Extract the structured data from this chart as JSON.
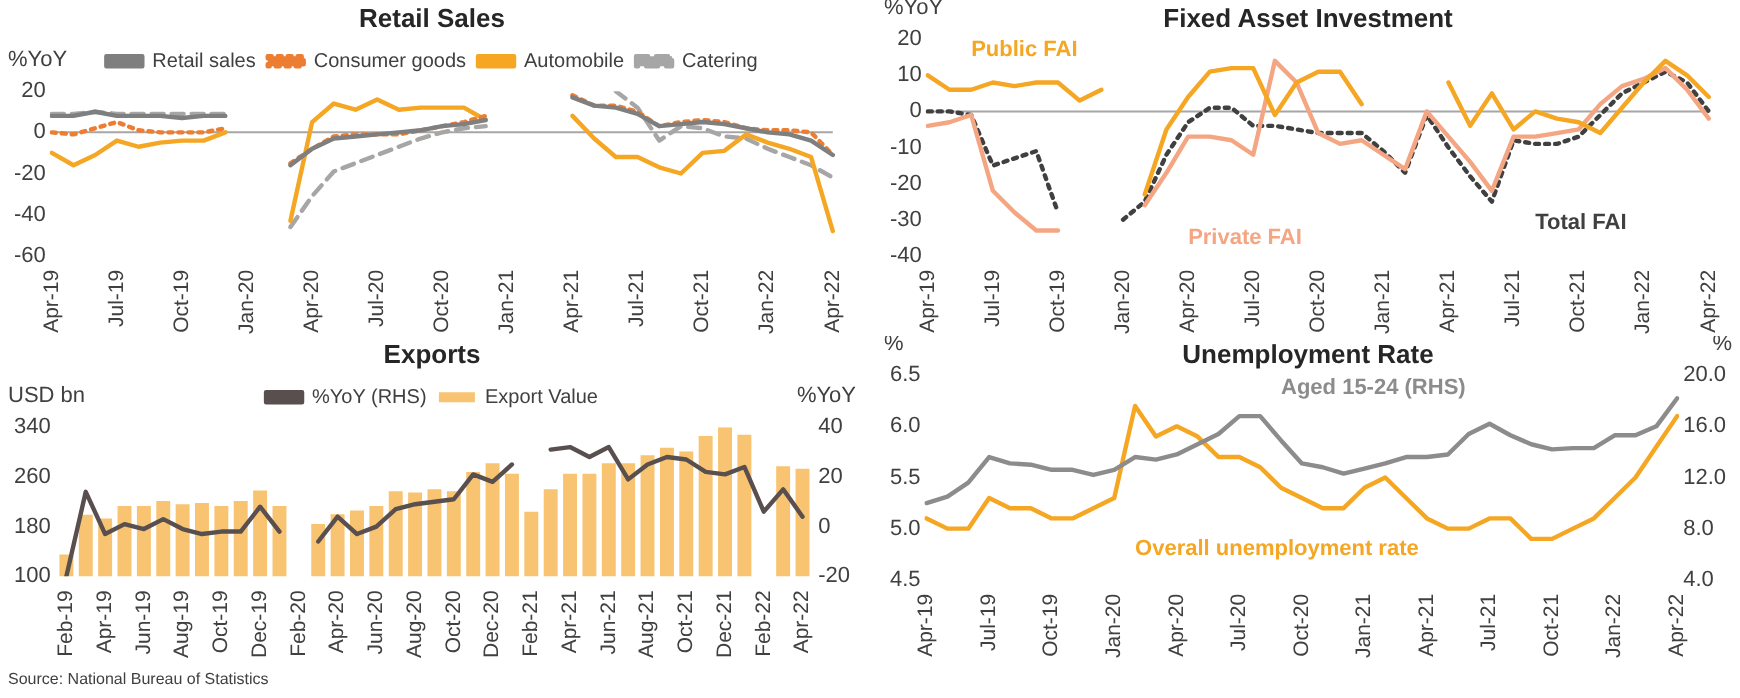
{
  "chart_data": [
    {
      "type": "line",
      "title": "Retail Sales",
      "ylabel": "%YoY",
      "categories": [
        "Apr-19",
        null,
        null,
        "Jul-19",
        null,
        null,
        "Oct-19",
        null,
        null,
        "Jan-20",
        null,
        null,
        "Apr-20",
        null,
        null,
        "Jul-20",
        null,
        null,
        "Oct-20",
        null,
        null,
        "Jan-21",
        null,
        null,
        "Apr-21",
        null,
        null,
        "Jul-21",
        null,
        null,
        "Oct-21",
        null,
        null,
        "Jan-22",
        null,
        null,
        "Apr-22"
      ],
      "series": [
        {
          "name": "Retail sales",
          "color": "#7f7f7f",
          "values": [
            8,
            8,
            10,
            8,
            8,
            8,
            7,
            8,
            8,
            null,
            null,
            -16,
            -8,
            -3,
            -2,
            -1,
            0,
            1,
            3,
            4,
            6,
            null,
            null,
            null,
            17,
            13,
            12,
            9,
            3,
            4,
            5,
            4,
            2,
            0,
            -1,
            -4,
            -11
          ]
        },
        {
          "name": "Consumer goods",
          "color": "#ed7d31",
          "line_style": "dotted",
          "values": [
            0,
            -1,
            2,
            5,
            1,
            0,
            0,
            0,
            2,
            null,
            null,
            -15,
            -8,
            -2,
            -1,
            -1,
            -1,
            1,
            3,
            5,
            8,
            null,
            null,
            null,
            18,
            13,
            13,
            10,
            3,
            5,
            6,
            5,
            2,
            1,
            1,
            0,
            -11
          ]
        },
        {
          "name": "Automobile",
          "color": "#f5a623",
          "values": [
            -10,
            -16,
            -11,
            -4,
            -7,
            -5,
            -4,
            -4,
            0,
            null,
            null,
            -43,
            5,
            14,
            11,
            16,
            11,
            12,
            12,
            12,
            6,
            null,
            null,
            null,
            8,
            -3,
            -12,
            -12,
            -17,
            -20,
            -10,
            -9,
            -1,
            -5,
            -8,
            -12,
            -48
          ]
        },
        {
          "name": "Catering",
          "color": "#a6a6a6",
          "line_style": "dashed",
          "values": [
            9,
            9,
            10,
            9,
            9,
            9,
            9,
            9,
            9,
            null,
            null,
            -46,
            -31,
            -19,
            -15,
            -11,
            -7,
            -3,
            0,
            2,
            3,
            null,
            null,
            null,
            null,
            null,
            20,
            12,
            -4,
            3,
            2,
            -2,
            -3,
            -8,
            -12,
            -16,
            -22
          ]
        }
      ],
      "ylim": [
        -60,
        20
      ],
      "yticks": [
        -60,
        -40,
        -20,
        0,
        20
      ],
      "legend": "top",
      "marker": "none",
      "ref_lines": [
        {
          "axis": "y",
          "value": 0,
          "color": "#a6a6a6"
        }
      ]
    },
    {
      "type": "line",
      "title": "Fixed Asset Investment",
      "ylabel": "%YoY",
      "categories": [
        "Apr-19",
        null,
        null,
        "Jul-19",
        null,
        null,
        "Oct-19",
        null,
        null,
        "Jan-20",
        null,
        null,
        "Apr-20",
        null,
        null,
        "Jul-20",
        null,
        null,
        "Oct-20",
        null,
        null,
        "Jan-21",
        null,
        null,
        "Apr-21",
        null,
        null,
        "Jul-21",
        null,
        null,
        "Oct-21",
        null,
        null,
        "Jan-22",
        null,
        null,
        "Apr-22"
      ],
      "series": [
        {
          "name": "Public FAI",
          "color": "#f5a623",
          "values": [
            10,
            6,
            6,
            8,
            7,
            8,
            8,
            3,
            6,
            null,
            -23,
            -5,
            4,
            11,
            12,
            12,
            -1,
            8,
            11,
            11,
            2,
            null,
            null,
            null,
            8,
            -4,
            5,
            -5,
            0,
            -2,
            -3,
            -6,
            1,
            8,
            14,
            10,
            4
          ]
        },
        {
          "name": "Private FAI",
          "color": "#f4a582",
          "values": [
            -4,
            -3,
            -1,
            -22,
            -28,
            -33,
            -33,
            null,
            null,
            null,
            -26,
            -17,
            -7,
            -7,
            -8,
            -12,
            14,
            8,
            -6,
            -9,
            -8,
            -12,
            -16,
            0,
            -7,
            -14,
            -22,
            -7,
            -7,
            -6,
            -5,
            2,
            7,
            9,
            12,
            6,
            -2
          ]
        },
        {
          "name": "Total FAI",
          "color": "#404040",
          "line_style": "dotted",
          "values": [
            0,
            0,
            -1,
            -15,
            -13,
            -11,
            -28,
            null,
            null,
            -30,
            -25,
            -12,
            -3,
            1,
            1,
            -4,
            -4,
            -5,
            -6,
            -6,
            -6,
            -11,
            -17,
            -1,
            -10,
            -18,
            -25,
            -8,
            -9,
            -9,
            -7,
            -1,
            5,
            8,
            11,
            8,
            0
          ]
        }
      ],
      "ylim": [
        -40,
        20
      ],
      "yticks": [
        -40,
        -30,
        -20,
        -10,
        0,
        10,
        20
      ],
      "marker": "none",
      "ref_lines": [
        {
          "axis": "y",
          "value": 0,
          "color": "#a6a6a6"
        }
      ]
    },
    {
      "type": "bar",
      "title": "Exports",
      "ylabel": "USD bn",
      "y2label": "%YoY",
      "categories": [
        "Feb-19",
        null,
        "Apr-19",
        null,
        "Jun-19",
        null,
        "Aug-19",
        null,
        "Oct-19",
        null,
        "Dec-19",
        null,
        "Feb-20",
        null,
        "Apr-20",
        null,
        "Jun-20",
        null,
        "Aug-20",
        null,
        "Oct-20",
        null,
        "Dec-20",
        null,
        "Feb-21",
        null,
        "Apr-21",
        null,
        "Jun-21",
        null,
        "Aug-21",
        null,
        "Oct-21",
        null,
        "Dec-21",
        null,
        "Feb-22",
        null,
        "Apr-22"
      ],
      "series": [
        {
          "name": "Export Value",
          "color": "#f8c471",
          "values": [
            135,
            199,
            193,
            213,
            213,
            221,
            216,
            218,
            213,
            221,
            238,
            213,
            null,
            184,
            200,
            206,
            213,
            237,
            235,
            240,
            237,
            268,
            282,
            265,
            204,
            240,
            265,
            265,
            282,
            282,
            295,
            307,
            301,
            326,
            340,
            328,
            null,
            277,
            273
          ]
        },
        {
          "name": "%YoY (RHS)",
          "type": "line",
          "axis": "y2",
          "color": "#594f4f",
          "values": [
            -20,
            14,
            -3,
            1,
            -1,
            3,
            -1,
            -3,
            -2,
            -2,
            8,
            -2,
            null,
            -6,
            4,
            -3,
            0,
            7,
            9,
            10,
            11,
            21,
            18,
            25,
            null,
            31,
            32,
            28,
            32,
            19,
            25,
            28,
            27,
            22,
            21,
            24,
            6,
            15,
            4
          ]
        }
      ],
      "ylim": [
        100,
        340
      ],
      "yticks": [
        100,
        180,
        260,
        340
      ],
      "y2lim": [
        -20,
        40
      ],
      "y2ticks": [
        -20,
        0,
        20,
        40
      ],
      "legend": "top",
      "marker": "none",
      "annotations": [
        "Source: National Bureau of Statistics"
      ]
    },
    {
      "type": "line",
      "title": "Unemployment Rate",
      "ylabel": "%",
      "y2label": "%",
      "categories": [
        "Apr-19",
        null,
        null,
        "Jul-19",
        null,
        null,
        "Oct-19",
        null,
        null,
        "Jan-20",
        null,
        null,
        "Apr-20",
        null,
        null,
        "Jul-20",
        null,
        null,
        "Oct-20",
        null,
        null,
        "Jan-21",
        null,
        null,
        "Apr-21",
        null,
        null,
        "Jul-21",
        null,
        null,
        "Oct-21",
        null,
        null,
        "Jan-22",
        null,
        null,
        "Apr-22"
      ],
      "series": [
        {
          "name": "Aged 15-24 (RHS)",
          "color": "#8c8c8c",
          "axis": "y2",
          "values": [
            10.0,
            10.5,
            11.6,
            13.6,
            13.1,
            13.0,
            12.6,
            12.6,
            12.2,
            12.6,
            13.6,
            13.4,
            13.8,
            14.6,
            15.4,
            16.8,
            16.8,
            14.9,
            13.1,
            12.8,
            12.3,
            12.7,
            13.1,
            13.6,
            13.6,
            13.8,
            15.4,
            16.2,
            15.3,
            14.6,
            14.2,
            14.3,
            14.3,
            15.3,
            15.3,
            16.0,
            18.2
          ]
        },
        {
          "name": "Overall unemployment rate",
          "color": "#f5a623",
          "values": [
            5.1,
            5.0,
            5.0,
            5.3,
            5.2,
            5.2,
            5.1,
            5.1,
            5.2,
            5.3,
            6.2,
            5.9,
            6.0,
            5.9,
            5.7,
            5.7,
            5.6,
            5.4,
            5.3,
            5.2,
            5.2,
            5.4,
            5.5,
            5.3,
            5.1,
            5.0,
            5.0,
            5.1,
            5.1,
            4.9,
            4.9,
            5.0,
            5.1,
            5.3,
            5.5,
            5.8,
            6.1
          ]
        }
      ],
      "ylim": [
        4.5,
        6.5
      ],
      "yticks": [
        4.5,
        {
          "value": 5,
          "label": "5.0"
        },
        5.5,
        {
          "value": 6,
          "label": "6.0"
        },
        6.5
      ],
      "y2lim": [
        4,
        20
      ],
      "y2ticks": [
        {
          "value": 4,
          "label": "4.0"
        },
        {
          "value": 8,
          "label": "8.0"
        },
        {
          "value": 12,
          "label": "12.0"
        },
        {
          "value": 16,
          "label": "16.0"
        },
        {
          "value": 20,
          "label": "20.0"
        }
      ],
      "marker": "none"
    }
  ]
}
